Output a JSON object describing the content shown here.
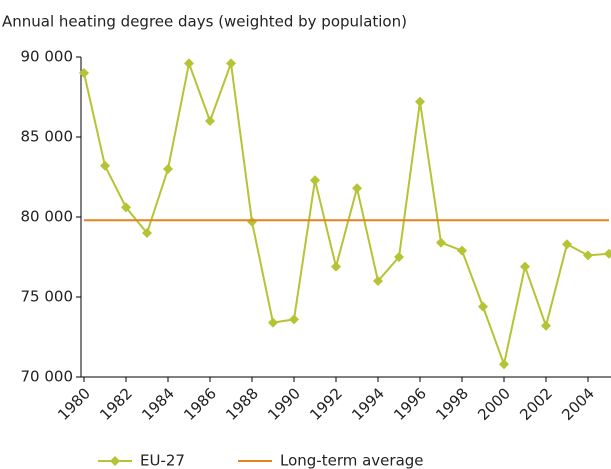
{
  "chart_data": {
    "type": "line",
    "title": "Annual heating degree days (weighted by population)",
    "x": [
      1980,
      1981,
      1982,
      1983,
      1984,
      1985,
      1986,
      1987,
      1988,
      1989,
      1990,
      1991,
      1992,
      1993,
      1994,
      1995,
      1996,
      1997,
      1998,
      1999,
      2000,
      2001,
      2002,
      2003,
      2004,
      2005
    ],
    "xlim": [
      1980,
      2005
    ],
    "xticks": [
      1980,
      1982,
      1984,
      1986,
      1988,
      1990,
      1992,
      1994,
      1996,
      1998,
      2000,
      2002,
      2004
    ],
    "ylim": [
      70000,
      90000
    ],
    "yticks": [
      {
        "value": 70000,
        "label": "70 000"
      },
      {
        "value": 75000,
        "label": "75 000"
      },
      {
        "value": 80000,
        "label": "80 000"
      },
      {
        "value": 85000,
        "label": "85 000"
      },
      {
        "value": 90000,
        "label": "90 000"
      }
    ],
    "grid": false,
    "legend": "bottom",
    "series": [
      {
        "name": "EU-27",
        "color": "#b5c334",
        "marker": "diamond",
        "values": [
          89000,
          83200,
          80600,
          79000,
          83000,
          89600,
          86000,
          89600,
          79700,
          73400,
          73600,
          82300,
          76900,
          81800,
          76000,
          77500,
          87200,
          78400,
          77900,
          74400,
          70800,
          76900,
          73200,
          78300,
          77600,
          77700
        ]
      },
      {
        "name": "Long-term average",
        "color": "#e8821e",
        "marker": null,
        "values": [
          79800,
          79800,
          79800,
          79800,
          79800,
          79800,
          79800,
          79800,
          79800,
          79800,
          79800,
          79800,
          79800,
          79800,
          79800,
          79800,
          79800,
          79800,
          79800,
          79800,
          79800,
          79800,
          79800,
          79800,
          79800,
          79800
        ]
      }
    ]
  }
}
